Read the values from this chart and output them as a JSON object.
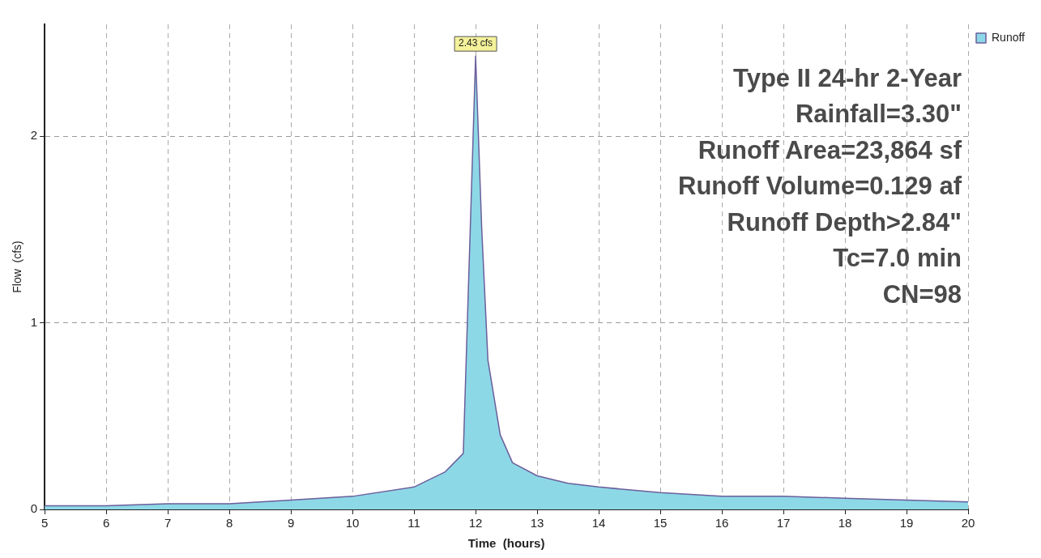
{
  "chart_data": {
    "type": "area",
    "xlabel": "Time  (hours)",
    "ylabel": "Flow  (cfs)",
    "series": [
      {
        "name": "Runoff",
        "color": "#8dd8e6",
        "x": [
          5,
          6,
          7,
          8,
          9,
          10,
          11,
          11.5,
          11.8,
          12,
          12.1,
          12.2,
          12.4,
          12.6,
          13,
          13.5,
          14,
          15,
          16,
          17,
          18,
          19,
          20
        ],
        "values": [
          0.02,
          0.02,
          0.03,
          0.03,
          0.05,
          0.07,
          0.12,
          0.2,
          0.3,
          2.43,
          1.5,
          0.8,
          0.4,
          0.25,
          0.18,
          0.14,
          0.12,
          0.09,
          0.07,
          0.07,
          0.06,
          0.05,
          0.04
        ]
      }
    ],
    "xlim": [
      5,
      20
    ],
    "xticks": [
      5,
      6,
      7,
      8,
      9,
      10,
      11,
      12,
      13,
      14,
      15,
      16,
      17,
      18,
      19,
      20
    ],
    "ylim": [
      0,
      2.6
    ],
    "yticks": [
      0,
      1,
      2
    ],
    "grid": true,
    "legend": "top right",
    "marker": "none",
    "line_style": "solid",
    "annotations": [
      {
        "text": "2.43 cfs",
        "x": 12,
        "y": 2.43
      },
      "Type II 24-hr 2-Year",
      "Rainfall=3.30\"",
      "Runoff Area=23,864 sf",
      "Runoff Volume=0.129 af",
      "Runoff Depth>2.84\"",
      "Tc=7.0 min",
      "CN=98"
    ]
  }
}
